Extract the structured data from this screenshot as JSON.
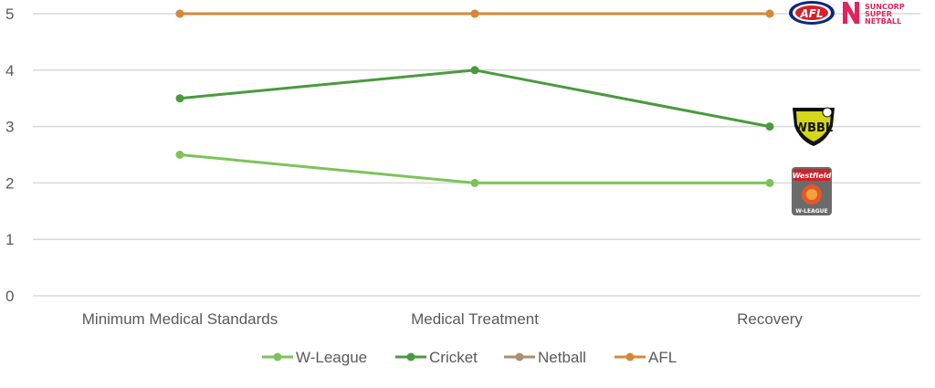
{
  "chart_data": {
    "type": "line",
    "categories": [
      "Minimum Medical Standards",
      "Medical Treatment",
      "Recovery"
    ],
    "ylim": [
      0,
      5
    ],
    "yticks": [
      "0",
      "1",
      "2",
      "3",
      "4",
      "5"
    ],
    "grid": true,
    "legend_position": "bottom",
    "series": [
      {
        "name": "W-League",
        "values": [
          2.5,
          2,
          2
        ],
        "color": "#7ec35a"
      },
      {
        "name": "Cricket",
        "values": [
          3.5,
          4,
          3
        ],
        "color": "#4a9a3e"
      },
      {
        "name": "Netball",
        "values": [
          5,
          5,
          5
        ],
        "color": "#a88f6e"
      },
      {
        "name": "AFL",
        "values": [
          5,
          5,
          5
        ],
        "color": "#d4883a"
      }
    ]
  },
  "logos": {
    "afl": {
      "text": "AFL",
      "icon": "afl-logo"
    },
    "netball": {
      "line1": "SUNCORP",
      "line2": "SUPER",
      "line3": "NETBALL",
      "icon": "suncorp-super-netball-logo"
    },
    "wbbl": {
      "text": "WBBL",
      "icon": "wbbl-logo"
    },
    "wleague": {
      "top": "Westfield",
      "bottom": "W-LEAGUE",
      "icon": "w-league-logo"
    }
  }
}
